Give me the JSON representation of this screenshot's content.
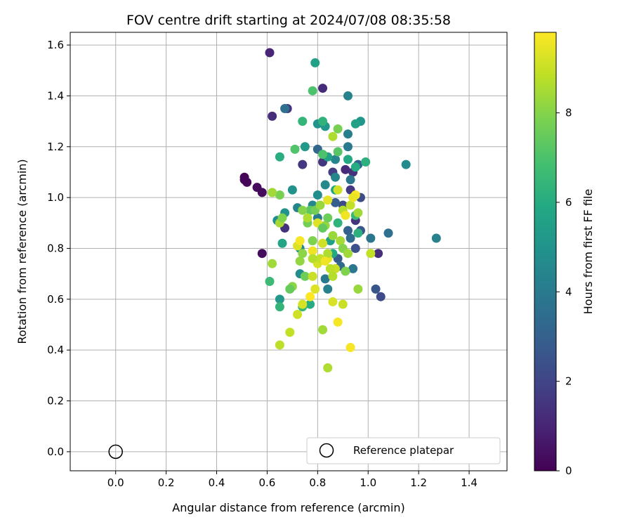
{
  "chart_data": {
    "type": "scatter",
    "title": "FOV centre drift starting at 2024/07/08 08:35:58",
    "xlabel": "Angular distance from reference (arcmin)",
    "ylabel": "Rotation from reference (arcmin)",
    "xlim": [
      -0.18,
      1.55
    ],
    "ylim": [
      -0.075,
      1.65
    ],
    "xticks": [
      "0.0",
      "0.2",
      "0.4",
      "0.6",
      "0.8",
      "1.0",
      "1.2",
      "1.4"
    ],
    "yticks": [
      "0.0",
      "0.2",
      "0.4",
      "0.6",
      "0.8",
      "1.0",
      "1.2",
      "1.4",
      "1.6"
    ],
    "grid": true,
    "legend": {
      "position": "lower-right",
      "entries": [
        {
          "label": "Reference platepar",
          "marker": "open-circle",
          "x": 0.0,
          "y": 0.0
        }
      ]
    },
    "colorbar": {
      "label": "Hours from first FF file",
      "min": 0,
      "max": 9.8,
      "ticks": [
        "0",
        "2",
        "4",
        "6",
        "8"
      ],
      "colormap": "viridis"
    },
    "series": [
      {
        "points": [
          [
            0.51,
            1.08,
            0.1
          ],
          [
            0.52,
            1.06,
            0.2
          ],
          [
            0.51,
            1.07,
            0.15
          ],
          [
            0.56,
            1.04,
            0.3
          ],
          [
            0.58,
            1.02,
            0.25
          ],
          [
            0.58,
            0.78,
            0.3
          ],
          [
            0.61,
            1.57,
            1.0
          ],
          [
            0.62,
            1.32,
            1.3
          ],
          [
            0.68,
            1.35,
            1.5
          ],
          [
            0.82,
            1.43,
            1.2
          ],
          [
            0.67,
            0.88,
            1.4
          ],
          [
            0.74,
            1.13,
            1.6
          ],
          [
            0.82,
            1.14,
            1.5
          ],
          [
            0.86,
            1.1,
            1.8
          ],
          [
            0.94,
            1.1,
            1.4
          ],
          [
            0.91,
            1.11,
            1.2
          ],
          [
            0.93,
            1.03,
            1.6
          ],
          [
            0.95,
            0.91,
            1.5
          ],
          [
            1.04,
            0.78,
            1.3
          ],
          [
            1.05,
            0.61,
            2.2
          ],
          [
            1.03,
            0.64,
            2.6
          ],
          [
            0.97,
            0.87,
            2.6
          ],
          [
            0.95,
            0.8,
            2.4
          ],
          [
            0.9,
            0.97,
            2.2
          ],
          [
            0.92,
            0.87,
            3.0
          ],
          [
            0.88,
            0.76,
            2.8
          ],
          [
            0.87,
            0.98,
            2.9
          ],
          [
            0.97,
            1.0,
            2.3
          ],
          [
            0.96,
            1.13,
            3.1
          ],
          [
            1.08,
            0.86,
            3.6
          ],
          [
            1.27,
            0.84,
            4.3
          ],
          [
            1.01,
            0.84,
            3.8
          ],
          [
            0.93,
            0.84,
            3.5
          ],
          [
            0.94,
            0.72,
            3.9
          ],
          [
            0.89,
            0.73,
            3.3
          ],
          [
            0.83,
            0.68,
            4.0
          ],
          [
            0.84,
            0.64,
            4.3
          ],
          [
            0.8,
            0.92,
            4.0
          ],
          [
            0.8,
            1.19,
            3.2
          ],
          [
            0.67,
            1.35,
            3.6
          ],
          [
            0.92,
            1.25,
            4.2
          ],
          [
            0.92,
            1.2,
            4.0
          ],
          [
            0.93,
            1.07,
            3.9
          ],
          [
            0.87,
            1.15,
            4.5
          ],
          [
            0.87,
            1.08,
            4.4
          ],
          [
            0.83,
            1.05,
            4.6
          ],
          [
            0.8,
            1.01,
            4.8
          ],
          [
            0.78,
            0.97,
            4.5
          ],
          [
            0.72,
            0.96,
            4.4
          ],
          [
            0.64,
            0.91,
            4.7
          ],
          [
            0.67,
            0.94,
            5.0
          ],
          [
            0.73,
            0.8,
            4.6
          ],
          [
            0.73,
            0.7,
            4.8
          ],
          [
            0.7,
            1.03,
            5.0
          ],
          [
            0.8,
            1.29,
            5.0
          ],
          [
            0.83,
            1.28,
            5.2
          ],
          [
            0.92,
            1.4,
            4.3
          ],
          [
            0.97,
            1.3,
            5.1
          ],
          [
            0.95,
            1.29,
            5.6
          ],
          [
            0.75,
            1.2,
            5.3
          ],
          [
            0.84,
            1.16,
            5.6
          ],
          [
            0.92,
            1.15,
            5.9
          ],
          [
            0.95,
            1.12,
            6.0
          ],
          [
            0.99,
            1.14,
            6.2
          ],
          [
            0.82,
            1.3,
            6.3
          ],
          [
            0.74,
            1.3,
            6.4
          ],
          [
            0.65,
            1.16,
            6.1
          ],
          [
            0.79,
            1.53,
            5.6
          ],
          [
            1.15,
            1.13,
            4.7
          ],
          [
            0.87,
            1.03,
            5.8
          ],
          [
            0.85,
            0.83,
            5.5
          ],
          [
            0.86,
            0.78,
            5.9
          ],
          [
            0.88,
            0.9,
            6.3
          ],
          [
            0.95,
            0.93,
            6.5
          ],
          [
            0.96,
            0.86,
            6.2
          ],
          [
            0.65,
            0.6,
            5.2
          ],
          [
            0.66,
            0.82,
            5.7
          ],
          [
            0.61,
            0.67,
            6.6
          ],
          [
            0.65,
            0.57,
            6.4
          ],
          [
            0.74,
            0.57,
            6.5
          ],
          [
            0.77,
            0.58,
            6.0
          ],
          [
            0.78,
            1.42,
            7.0
          ],
          [
            0.71,
            1.19,
            7.1
          ],
          [
            0.82,
            1.17,
            7.0
          ],
          [
            0.88,
            1.18,
            7.2
          ],
          [
            0.88,
            1.27,
            7.8
          ],
          [
            0.86,
            1.24,
            8.6
          ],
          [
            0.77,
            0.95,
            7.3
          ],
          [
            0.76,
            0.9,
            7.7
          ],
          [
            0.78,
            0.83,
            7.9
          ],
          [
            0.73,
            0.75,
            8.2
          ],
          [
            0.7,
            0.65,
            8.1
          ],
          [
            0.75,
            0.69,
            7.6
          ],
          [
            0.62,
            0.74,
            8.4
          ],
          [
            0.65,
            1.01,
            7.8
          ],
          [
            0.62,
            1.02,
            8.4
          ],
          [
            0.65,
            0.9,
            8.5
          ],
          [
            0.66,
            0.92,
            7.9
          ],
          [
            0.74,
            0.95,
            8.0
          ],
          [
            0.76,
            0.92,
            8.6
          ],
          [
            0.79,
            0.95,
            7.7
          ],
          [
            0.81,
            0.97,
            8.3
          ],
          [
            0.83,
            0.89,
            8.2
          ],
          [
            0.84,
            0.92,
            7.6
          ],
          [
            0.86,
            0.85,
            8.3
          ],
          [
            0.89,
            0.83,
            8.5
          ],
          [
            0.9,
            0.8,
            8.0
          ],
          [
            0.92,
            0.78,
            8.4
          ],
          [
            0.9,
            0.95,
            8.7
          ],
          [
            0.93,
            0.97,
            8.9
          ],
          [
            0.96,
            0.94,
            8.4
          ],
          [
            0.96,
            0.64,
            8.3
          ],
          [
            1.01,
            0.78,
            8.9
          ],
          [
            0.87,
            0.72,
            9.0
          ],
          [
            0.82,
            0.48,
            8.4
          ],
          [
            0.84,
            0.33,
            8.6
          ],
          [
            0.65,
            0.42,
            8.8
          ],
          [
            0.69,
            0.47,
            8.9
          ],
          [
            0.72,
            0.54,
            9.1
          ],
          [
            0.74,
            0.58,
            9.2
          ],
          [
            0.78,
            0.69,
            9.0
          ],
          [
            0.79,
            0.64,
            9.3
          ],
          [
            0.8,
            0.74,
            9.2
          ],
          [
            0.81,
            0.76,
            8.9
          ],
          [
            0.82,
            0.82,
            9.1
          ],
          [
            0.84,
            0.76,
            9.4
          ],
          [
            0.85,
            0.72,
            8.8
          ],
          [
            0.86,
            0.69,
            8.7
          ],
          [
            0.84,
            0.78,
            8.6
          ],
          [
            0.78,
            0.79,
            9.6
          ],
          [
            0.72,
            0.81,
            9.3
          ],
          [
            0.73,
            0.83,
            9.7
          ],
          [
            0.77,
            0.61,
            9.8
          ],
          [
            0.88,
            0.51,
            9.7
          ],
          [
            0.86,
            0.59,
            9.2
          ],
          [
            0.9,
            0.58,
            9.0
          ],
          [
            0.93,
            0.41,
            9.7
          ],
          [
            0.95,
            1.01,
            9.7
          ],
          [
            0.94,
            1.0,
            9.5
          ],
          [
            0.91,
            0.93,
            9.6
          ],
          [
            0.84,
            0.99,
            9.4
          ],
          [
            0.8,
            0.9,
            9.3
          ],
          [
            0.83,
            0.75,
            9.6
          ],
          [
            0.88,
            1.03,
            9.1
          ],
          [
            0.82,
            0.88,
            7.4
          ],
          [
            0.78,
            0.76,
            8.7
          ],
          [
            0.74,
            0.78,
            8.1
          ],
          [
            0.91,
            0.71,
            7.9
          ],
          [
            0.69,
            0.64,
            7.5
          ]
        ]
      }
    ]
  }
}
